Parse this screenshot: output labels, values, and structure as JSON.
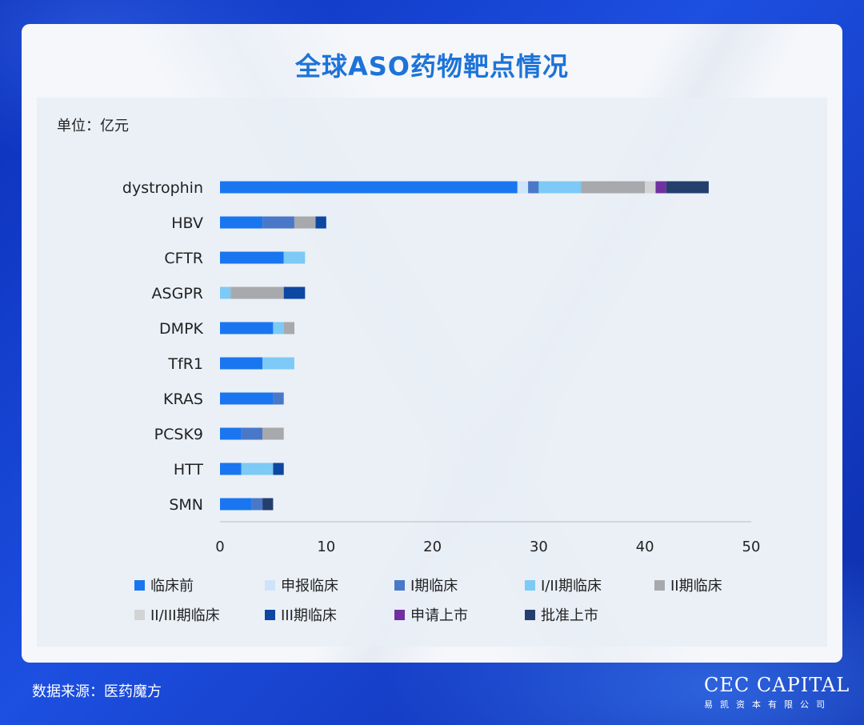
{
  "title": "全球ASO药物靶点情况",
  "unit_label": "单位：亿元",
  "source": "数据来源：医药魔方",
  "logo": {
    "main": "CEC CAPITAL",
    "sub": "易凯资本有限公司"
  },
  "chart_data": {
    "type": "bar",
    "orientation": "horizontal",
    "stacked": true,
    "categories": [
      "dystrophin",
      "HBV",
      "CFTR",
      "ASGPR",
      "DMPK",
      "TfR1",
      "KRAS",
      "PCSK9",
      "HTT",
      "SMN"
    ],
    "xlim": [
      0,
      50
    ],
    "xticks": [
      "0",
      "10",
      "20",
      "30",
      "40",
      "50"
    ],
    "grid": false,
    "legend_position": "bottom",
    "series": [
      {
        "name": "临床前",
        "color": "#1976f0",
        "values": [
          28,
          4,
          6,
          0,
          5,
          4,
          5,
          2,
          2,
          3
        ]
      },
      {
        "name": "申报临床",
        "color": "#cfe3fb",
        "values": [
          1,
          0,
          0,
          0,
          0,
          0,
          0,
          0,
          0,
          0
        ]
      },
      {
        "name": "I期临床",
        "color": "#4a78c8",
        "values": [
          1,
          3,
          0,
          0,
          0,
          0,
          1,
          2,
          0,
          1
        ]
      },
      {
        "name": "I/II期临床",
        "color": "#7ccaf5",
        "values": [
          4,
          0,
          2,
          1,
          1,
          3,
          0,
          0,
          3,
          0
        ]
      },
      {
        "name": "II期临床",
        "color": "#a7a9ac",
        "values": [
          6,
          2,
          0,
          5,
          1,
          0,
          0,
          2,
          0,
          0
        ]
      },
      {
        "name": "II/III期临床",
        "color": "#d2d3d5",
        "values": [
          1,
          0,
          0,
          0,
          0,
          0,
          0,
          0,
          0,
          0
        ]
      },
      {
        "name": "III期临床",
        "color": "#0d47a1",
        "values": [
          0,
          1,
          0,
          2,
          0,
          0,
          0,
          0,
          1,
          0
        ]
      },
      {
        "name": "申请上市",
        "color": "#7030a0",
        "values": [
          1,
          0,
          0,
          0,
          0,
          0,
          0,
          0,
          0,
          0
        ]
      },
      {
        "name": "批准上市",
        "color": "#243e6e",
        "values": [
          4,
          0,
          0,
          0,
          0,
          0,
          0,
          0,
          0,
          1
        ]
      }
    ]
  }
}
